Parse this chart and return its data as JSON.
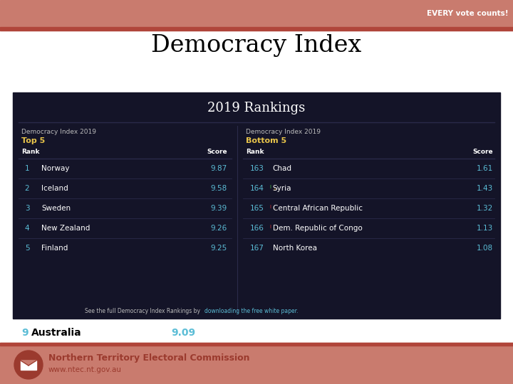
{
  "title": "Democracy Index",
  "subtitle": "2019 Rankings",
  "header_bg": "#c97b6e",
  "header_dark_stripe": "#b0453a",
  "header_text": "EVERY vote counts!",
  "table_bg": "#141428",
  "table_title_left": "Democracy Index 2019",
  "table_top5_label": "Top 5",
  "table_title_right": "Democracy Index 2019",
  "table_bottom5_label": "Bottom 5",
  "top5_color": "#e8c44a",
  "rank_col_color": "#5bbdd6",
  "score_col_color": "#5bbdd6",
  "top5": [
    {
      "rank": "1",
      "country": "Norway",
      "score": "9.87"
    },
    {
      "rank": "2",
      "country": "Iceland",
      "score": "9.58"
    },
    {
      "rank": "3",
      "country": "Sweden",
      "score": "9.39"
    },
    {
      "rank": "4",
      "country": "New Zealand",
      "score": "9.26"
    },
    {
      "rank": "5",
      "country": "Finland",
      "score": "9.25"
    }
  ],
  "bottom5": [
    {
      "rank": "163",
      "country": "Chad",
      "score": "1.61",
      "arrow": ""
    },
    {
      "rank": "164",
      "country": "Syria",
      "score": "1.43",
      "arrow": "green_up_orange_down"
    },
    {
      "rank": "165",
      "country": "Central African Republic",
      "score": "1.32",
      "arrow": "red_down_orange_up"
    },
    {
      "rank": "166",
      "country": "Dem. Republic of Congo",
      "score": "1.13",
      "arrow": "red_down_orange_up"
    },
    {
      "rank": "167",
      "country": "North Korea",
      "score": "1.08",
      "arrow": ""
    }
  ],
  "footer_note1": "See the full Democracy Index Rankings by ",
  "footer_note2": "downloading the free white paper.",
  "australia_rank": "9",
  "australia_country": "Australia",
  "australia_score": "9.09",
  "australia_rank_color": "#5bbdd6",
  "ntec_bg": "#c97b6e",
  "ntec_name": "Northern Territory Electoral Commission",
  "ntec_url": "www.ntec.nt.gov.au",
  "ntec_text_color": "#9b3a2e",
  "header_stripe_color": "#b0453a",
  "white": "#ffffff",
  "black": "#000000",
  "row_line_color": "#2a2a4a",
  "footer_link_color": "#5bbdd6",
  "grey_text": "#bbbbbb"
}
